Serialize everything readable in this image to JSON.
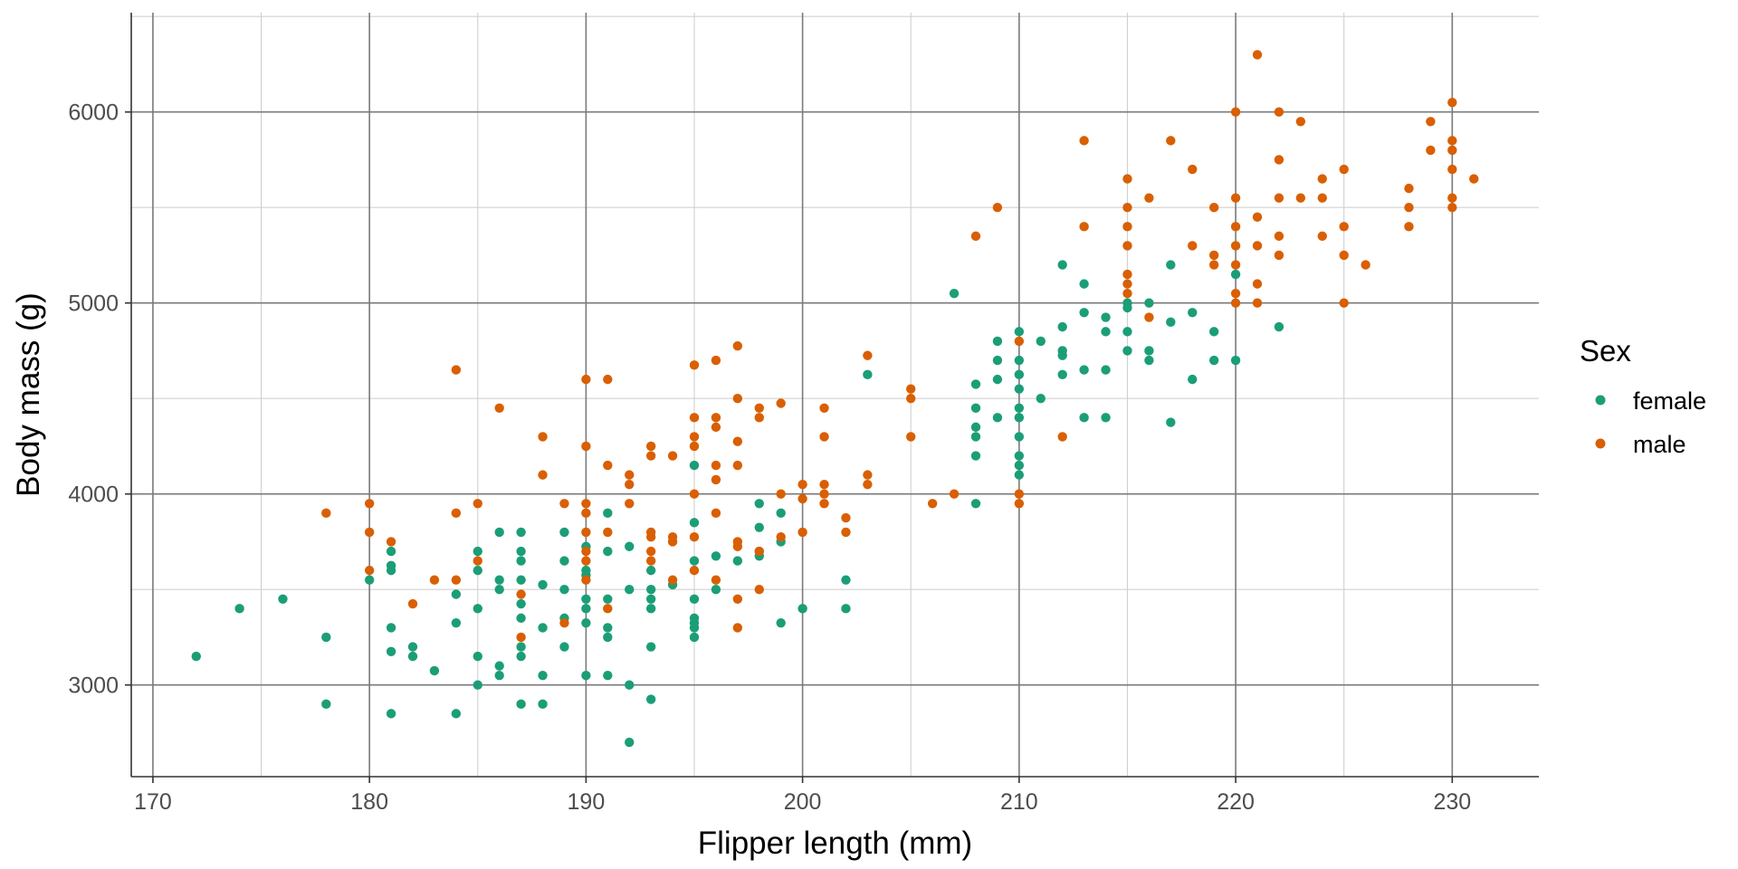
{
  "chart_data": {
    "type": "scatter",
    "title": "",
    "xlabel": "Flipper length (mm)",
    "ylabel": "Body mass (g)",
    "xlim": [
      169,
      234
    ],
    "ylim": [
      2520,
      6520
    ],
    "x_ticks": [
      170,
      180,
      190,
      200,
      210,
      220,
      230
    ],
    "y_ticks": [
      3000,
      4000,
      5000,
      6000
    ],
    "grid": true,
    "legend": {
      "title": "Sex",
      "placement": "right"
    },
    "series": [
      {
        "name": "female",
        "color": "#1b9e77",
        "points": [
          [
            172,
            3150
          ],
          [
            174,
            3400
          ],
          [
            176,
            3450
          ],
          [
            178,
            3250
          ],
          [
            178,
            2900
          ],
          [
            180,
            3550
          ],
          [
            181,
            3700
          ],
          [
            181,
            3625
          ],
          [
            181,
            3600
          ],
          [
            181,
            3300
          ],
          [
            181,
            3175
          ],
          [
            181,
            2850
          ],
          [
            182,
            3200
          ],
          [
            182,
            3150
          ],
          [
            183,
            3075
          ],
          [
            184,
            3475
          ],
          [
            184,
            3325
          ],
          [
            184,
            2850
          ],
          [
            185,
            3700
          ],
          [
            185,
            3600
          ],
          [
            185,
            3400
          ],
          [
            185,
            3150
          ],
          [
            185,
            3000
          ],
          [
            186,
            3800
          ],
          [
            186,
            3550
          ],
          [
            186,
            3500
          ],
          [
            186,
            3100
          ],
          [
            186,
            3050
          ],
          [
            187,
            3800
          ],
          [
            187,
            3700
          ],
          [
            187,
            3650
          ],
          [
            187,
            3550
          ],
          [
            187,
            3425
          ],
          [
            187,
            3350
          ],
          [
            187,
            3200
          ],
          [
            187,
            3150
          ],
          [
            187,
            2900
          ],
          [
            188,
            3525
          ],
          [
            188,
            3300
          ],
          [
            188,
            3050
          ],
          [
            188,
            2900
          ],
          [
            189,
            3800
          ],
          [
            189,
            3650
          ],
          [
            189,
            3500
          ],
          [
            189,
            3350
          ],
          [
            189,
            3200
          ],
          [
            190,
            3725
          ],
          [
            190,
            3600
          ],
          [
            190,
            3575
          ],
          [
            190,
            3450
          ],
          [
            190,
            3400
          ],
          [
            190,
            3325
          ],
          [
            190,
            3050
          ],
          [
            191,
            3900
          ],
          [
            191,
            3700
          ],
          [
            191,
            3450
          ],
          [
            191,
            3300
          ],
          [
            191,
            3250
          ],
          [
            191,
            3050
          ],
          [
            192,
            3725
          ],
          [
            192,
            3500
          ],
          [
            192,
            3000
          ],
          [
            192,
            2700
          ],
          [
            193,
            3600
          ],
          [
            193,
            3500
          ],
          [
            193,
            3450
          ],
          [
            193,
            3400
          ],
          [
            193,
            3200
          ],
          [
            193,
            2925
          ],
          [
            194,
            3525
          ],
          [
            195,
            4150
          ],
          [
            195,
            3850
          ],
          [
            195,
            3650
          ],
          [
            195,
            3450
          ],
          [
            195,
            3350
          ],
          [
            195,
            3325
          ],
          [
            195,
            3300
          ],
          [
            195,
            3250
          ],
          [
            196,
            3675
          ],
          [
            196,
            3500
          ],
          [
            197,
            3650
          ],
          [
            198,
            3950
          ],
          [
            198,
            3825
          ],
          [
            198,
            3700
          ],
          [
            198,
            3675
          ],
          [
            199,
            3900
          ],
          [
            199,
            3750
          ],
          [
            199,
            3325
          ],
          [
            200,
            3400
          ],
          [
            202,
            3550
          ],
          [
            202,
            3400
          ],
          [
            203,
            4625
          ],
          [
            207,
            5050
          ],
          [
            208,
            4575
          ],
          [
            208,
            4450
          ],
          [
            208,
            4350
          ],
          [
            208,
            4300
          ],
          [
            208,
            4200
          ],
          [
            208,
            3950
          ],
          [
            209,
            4800
          ],
          [
            209,
            4700
          ],
          [
            209,
            4600
          ],
          [
            209,
            4400
          ],
          [
            210,
            4850
          ],
          [
            210,
            4700
          ],
          [
            210,
            4625
          ],
          [
            210,
            4550
          ],
          [
            210,
            4450
          ],
          [
            210,
            4400
          ],
          [
            210,
            4300
          ],
          [
            210,
            4200
          ],
          [
            210,
            4150
          ],
          [
            210,
            4100
          ],
          [
            211,
            4800
          ],
          [
            211,
            4500
          ],
          [
            212,
            5200
          ],
          [
            212,
            4875
          ],
          [
            212,
            4750
          ],
          [
            212,
            4725
          ],
          [
            212,
            4625
          ],
          [
            213,
            5100
          ],
          [
            213,
            4950
          ],
          [
            213,
            4650
          ],
          [
            213,
            4400
          ],
          [
            214,
            4925
          ],
          [
            214,
            4850
          ],
          [
            214,
            4650
          ],
          [
            214,
            4400
          ],
          [
            215,
            5000
          ],
          [
            215,
            4975
          ],
          [
            215,
            4850
          ],
          [
            215,
            4750
          ],
          [
            216,
            5000
          ],
          [
            216,
            4750
          ],
          [
            216,
            4700
          ],
          [
            217,
            5200
          ],
          [
            217,
            4900
          ],
          [
            217,
            4375
          ],
          [
            218,
            4950
          ],
          [
            218,
            4600
          ],
          [
            219,
            4850
          ],
          [
            219,
            4700
          ],
          [
            220,
            5150
          ],
          [
            220,
            4700
          ],
          [
            222,
            4875
          ]
        ]
      },
      {
        "name": "male",
        "color": "#d95f02",
        "points": [
          [
            178,
            3900
          ],
          [
            180,
            3950
          ],
          [
            180,
            3800
          ],
          [
            180,
            3600
          ],
          [
            181,
            3750
          ],
          [
            182,
            3425
          ],
          [
            183,
            3550
          ],
          [
            184,
            4650
          ],
          [
            184,
            3900
          ],
          [
            184,
            3550
          ],
          [
            185,
            3950
          ],
          [
            185,
            3650
          ],
          [
            186,
            4450
          ],
          [
            187,
            3475
          ],
          [
            187,
            3250
          ],
          [
            188,
            4300
          ],
          [
            188,
            4100
          ],
          [
            189,
            3950
          ],
          [
            189,
            3325
          ],
          [
            190,
            4600
          ],
          [
            190,
            4250
          ],
          [
            190,
            3950
          ],
          [
            190,
            3900
          ],
          [
            190,
            3800
          ],
          [
            190,
            3700
          ],
          [
            190,
            3650
          ],
          [
            190,
            3550
          ],
          [
            191,
            4600
          ],
          [
            191,
            4150
          ],
          [
            191,
            3800
          ],
          [
            191,
            3400
          ],
          [
            192,
            4100
          ],
          [
            192,
            4050
          ],
          [
            192,
            3950
          ],
          [
            193,
            4250
          ],
          [
            193,
            4200
          ],
          [
            193,
            3800
          ],
          [
            193,
            3775
          ],
          [
            193,
            3700
          ],
          [
            193,
            3650
          ],
          [
            194,
            4200
          ],
          [
            194,
            3775
          ],
          [
            194,
            3750
          ],
          [
            194,
            3550
          ],
          [
            195,
            4675
          ],
          [
            195,
            4400
          ],
          [
            195,
            4300
          ],
          [
            195,
            4250
          ],
          [
            195,
            4000
          ],
          [
            195,
            3775
          ],
          [
            195,
            3600
          ],
          [
            196,
            4700
          ],
          [
            196,
            4400
          ],
          [
            196,
            4350
          ],
          [
            196,
            4150
          ],
          [
            196,
            4075
          ],
          [
            196,
            3900
          ],
          [
            196,
            3550
          ],
          [
            197,
            4775
          ],
          [
            197,
            4500
          ],
          [
            197,
            4275
          ],
          [
            197,
            4150
          ],
          [
            197,
            3750
          ],
          [
            197,
            3725
          ],
          [
            197,
            3450
          ],
          [
            197,
            3300
          ],
          [
            198,
            4450
          ],
          [
            198,
            4400
          ],
          [
            198,
            3700
          ],
          [
            198,
            3500
          ],
          [
            199,
            4475
          ],
          [
            199,
            4000
          ],
          [
            199,
            3775
          ],
          [
            200,
            4050
          ],
          [
            200,
            3975
          ],
          [
            200,
            3800
          ],
          [
            201,
            4450
          ],
          [
            201,
            4300
          ],
          [
            201,
            4050
          ],
          [
            201,
            4000
          ],
          [
            201,
            3950
          ],
          [
            202,
            3875
          ],
          [
            202,
            3800
          ],
          [
            203,
            4725
          ],
          [
            203,
            4100
          ],
          [
            203,
            4050
          ],
          [
            205,
            4550
          ],
          [
            205,
            4500
          ],
          [
            205,
            4300
          ],
          [
            206,
            3950
          ],
          [
            207,
            4000
          ],
          [
            208,
            5350
          ],
          [
            209,
            5500
          ],
          [
            210,
            4800
          ],
          [
            210,
            4000
          ],
          [
            210,
            3950
          ],
          [
            212,
            4300
          ],
          [
            213,
            5850
          ],
          [
            213,
            5400
          ],
          [
            215,
            5650
          ],
          [
            215,
            5500
          ],
          [
            215,
            5400
          ],
          [
            215,
            5300
          ],
          [
            215,
            5150
          ],
          [
            215,
            5100
          ],
          [
            215,
            5050
          ],
          [
            216,
            5550
          ],
          [
            216,
            4925
          ],
          [
            217,
            5850
          ],
          [
            218,
            5700
          ],
          [
            218,
            5300
          ],
          [
            219,
            5500
          ],
          [
            219,
            5250
          ],
          [
            219,
            5200
          ],
          [
            220,
            6000
          ],
          [
            220,
            5550
          ],
          [
            220,
            5400
          ],
          [
            220,
            5300
          ],
          [
            220,
            5200
          ],
          [
            220,
            5050
          ],
          [
            220,
            5000
          ],
          [
            221,
            6300
          ],
          [
            221,
            5450
          ],
          [
            221,
            5300
          ],
          [
            221,
            5100
          ],
          [
            221,
            5000
          ],
          [
            222,
            6000
          ],
          [
            222,
            5750
          ],
          [
            222,
            5550
          ],
          [
            222,
            5350
          ],
          [
            222,
            5250
          ],
          [
            223,
            5950
          ],
          [
            223,
            5550
          ],
          [
            224,
            5650
          ],
          [
            224,
            5550
          ],
          [
            224,
            5350
          ],
          [
            225,
            5700
          ],
          [
            225,
            5400
          ],
          [
            225,
            5250
          ],
          [
            225,
            5000
          ],
          [
            226,
            5200
          ],
          [
            228,
            5600
          ],
          [
            228,
            5500
          ],
          [
            228,
            5400
          ],
          [
            229,
            5950
          ],
          [
            229,
            5800
          ],
          [
            230,
            6050
          ],
          [
            230,
            5850
          ],
          [
            230,
            5800
          ],
          [
            230,
            5700
          ],
          [
            230,
            5550
          ],
          [
            230,
            5500
          ],
          [
            231,
            5650
          ]
        ]
      }
    ]
  }
}
